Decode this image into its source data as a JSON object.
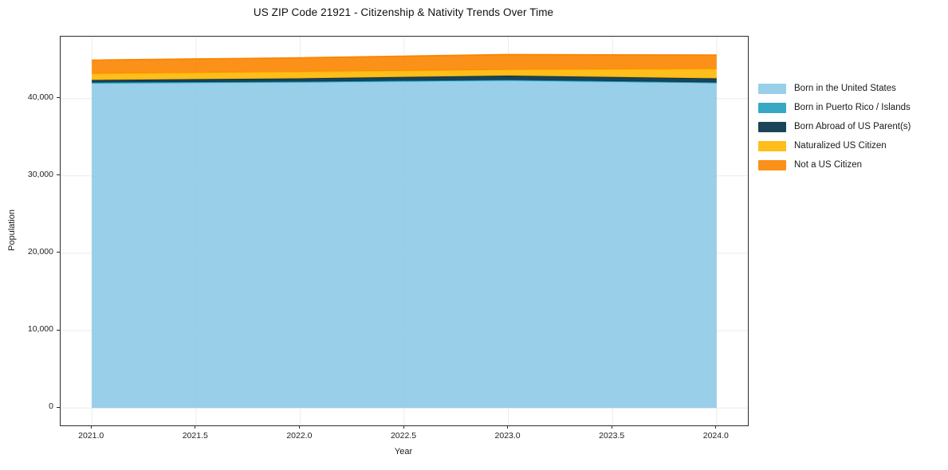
{
  "chart_data": {
    "type": "area",
    "stacked": true,
    "title": "US ZIP Code 21921 - Citizenship & Nativity Trends Over Time",
    "xlabel": "Year",
    "ylabel": "Population",
    "x": [
      2021,
      2022,
      2023,
      2024
    ],
    "series": [
      {
        "name": "Born in the United States",
        "color": "#8ecae6",
        "values": [
          41950,
          42080,
          42300,
          41990
        ]
      },
      {
        "name": "Born in Puerto Rico / Islands",
        "color": "#219ebc",
        "values": [
          120,
          100,
          100,
          90
        ]
      },
      {
        "name": "Born Abroad of US Parent(s)",
        "color": "#023047",
        "values": [
          320,
          420,
          560,
          520
        ]
      },
      {
        "name": "Naturalized US Citizen",
        "color": "#ffb703",
        "values": [
          820,
          860,
          760,
          1230
        ]
      },
      {
        "name": "Not a US Citizen",
        "color": "#fb8500",
        "values": [
          1750,
          1800,
          1960,
          1780
        ]
      }
    ],
    "totals": [
      44960,
      45260,
      45680,
      45610
    ],
    "xlim": [
      2020.85,
      2024.15
    ],
    "ylim": [
      -2250,
      48000
    ],
    "xtick_values": [
      2021.0,
      2021.5,
      2022.0,
      2022.5,
      2023.0,
      2023.5,
      2024.0
    ],
    "xtick_labels": [
      "2021.0",
      "2021.5",
      "2022.0",
      "2022.5",
      "2023.0",
      "2023.5",
      "2024.0"
    ],
    "ytick_values": [
      0,
      10000,
      20000,
      30000,
      40000
    ],
    "ytick_labels": [
      "0",
      "10,000",
      "20,000",
      "30,000",
      "40,000"
    ],
    "grid": true,
    "grid_color": "#ebebeb",
    "fill_alpha": 0.9,
    "legend_position": "right-outside",
    "background_color": "#ffffff",
    "spine_color": "#2b2b2b"
  }
}
